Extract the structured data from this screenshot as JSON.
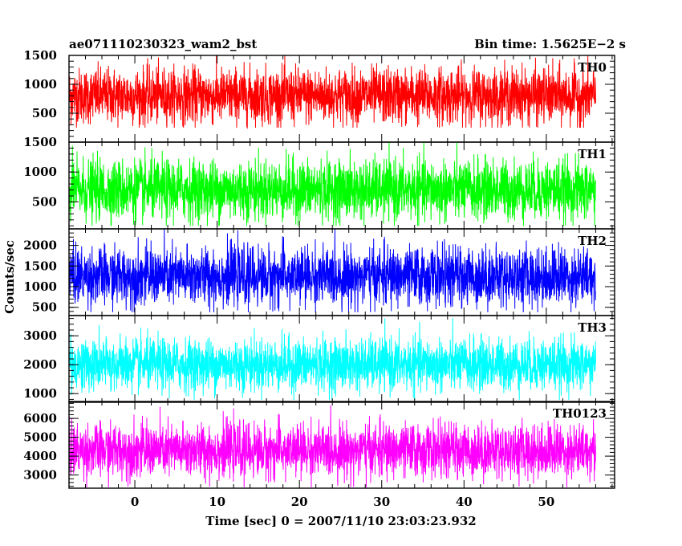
{
  "chart_data": {
    "type": "line",
    "title": "ae071110230323_wam2_bst",
    "subtitle": "Bin time: 1.5625E−2 s",
    "xlabel": "Time [sec] 0 = 2007/11/10 23:03:23.932",
    "ylabel": "Counts/sec",
    "xlim": [
      -8,
      58.3
    ],
    "x_data_range": [
      -8,
      56
    ],
    "x_ticks": [
      0,
      10,
      20,
      30,
      40,
      50
    ],
    "grid": false,
    "panels": [
      {
        "name": "TH0",
        "color": "#ff0000",
        "ylim": [
          0,
          1500
        ],
        "y_ticks": [
          500,
          1000,
          1500
        ],
        "y_tick_labels": [
          "500",
          "1000",
          "1500"
        ],
        "mean": 800,
        "noise_sd": 240,
        "max": 1500,
        "min": 250
      },
      {
        "name": "TH1",
        "color": "#00ff00",
        "ylim": [
          50,
          1500
        ],
        "y_ticks": [
          500,
          1000,
          1500
        ],
        "y_tick_labels": [
          "500",
          "1000",
          "1500"
        ],
        "mean": 700,
        "noise_sd": 250,
        "max": 1500,
        "min": 100
      },
      {
        "name": "TH2",
        "color": "#0000ff",
        "ylim": [
          300,
          2400
        ],
        "y_ticks": [
          500,
          1000,
          1500,
          2000
        ],
        "y_tick_labels": [
          "500",
          "1000",
          "1500",
          "2000"
        ],
        "mean": 1250,
        "noise_sd": 350,
        "max": 2400,
        "min": 380
      },
      {
        "name": "TH3",
        "color": "#00ffff",
        "ylim": [
          700,
          3700
        ],
        "y_ticks": [
          1000,
          2000,
          3000
        ],
        "y_tick_labels": [
          "1000",
          "2000",
          "3000"
        ],
        "mean": 2000,
        "noise_sd": 450,
        "max": 3700,
        "min": 780
      },
      {
        "name": "TH0123",
        "color": "#ff00ff",
        "ylim": [
          2300,
          6900
        ],
        "y_ticks": [
          3000,
          4000,
          5000,
          6000
        ],
        "y_tick_labels": [
          "3000",
          "4000",
          "5000",
          "6000"
        ],
        "mean": 4300,
        "noise_sd": 700,
        "max": 6700,
        "min": 2350
      }
    ]
  }
}
